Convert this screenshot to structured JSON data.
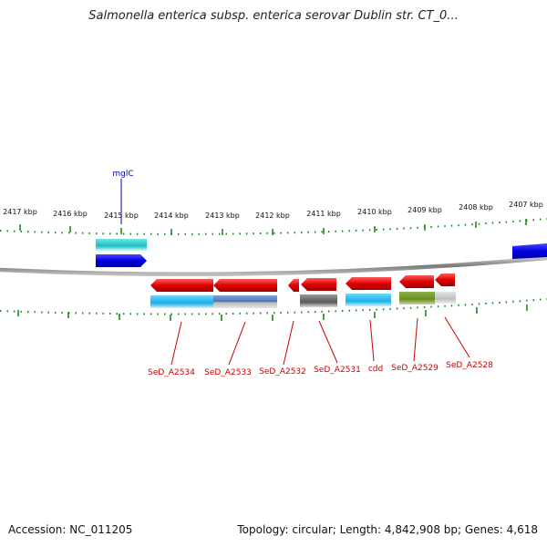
{
  "header": {
    "title": "Salmonella enterica subsp. enterica serovar Dublin str. CT_0..."
  },
  "footer": {
    "accession": "Accession: NC_011205",
    "summary": "Topology: circular; Length: 4,842,908 bp; Genes: 4,618"
  },
  "colors": {
    "backbone": "#8a8a8a",
    "tick": "#1f8a1f",
    "forward_label": "#0000aa",
    "reverse_label": "#cc0000",
    "red_gene": "#e60000",
    "blue_gene": "#0000e6",
    "cyan_feature": "#18b8e6",
    "teal_feature": "#1fc8c8",
    "gray_feature": "#666666",
    "steel_feature": "#4f7fb8",
    "olive_feature": "#6b8e23",
    "light_gray_feature": "#c8c8c8"
  },
  "scale_labels": [
    {
      "label": "2417 kbp"
    },
    {
      "label": "2416 kbp"
    },
    {
      "label": "2415 kbp"
    },
    {
      "label": "2414 kbp"
    },
    {
      "label": "2413 kbp"
    },
    {
      "label": "2412 kbp"
    },
    {
      "label": "2411 kbp"
    },
    {
      "label": "2410 kbp"
    },
    {
      "label": "2409 kbp"
    },
    {
      "label": "2408 kbp"
    },
    {
      "label": "2407 kbp"
    }
  ],
  "gene_labels": {
    "forward": [
      {
        "name": "mglC"
      }
    ],
    "reverse": [
      {
        "name": "SeD_A2534"
      },
      {
        "name": "SeD_A2533"
      },
      {
        "name": "SeD_A2532"
      },
      {
        "name": "SeD_A2531"
      },
      {
        "name": "cdd"
      },
      {
        "name": "SeD_A2529"
      },
      {
        "name": "SeD_A2528"
      }
    ]
  }
}
